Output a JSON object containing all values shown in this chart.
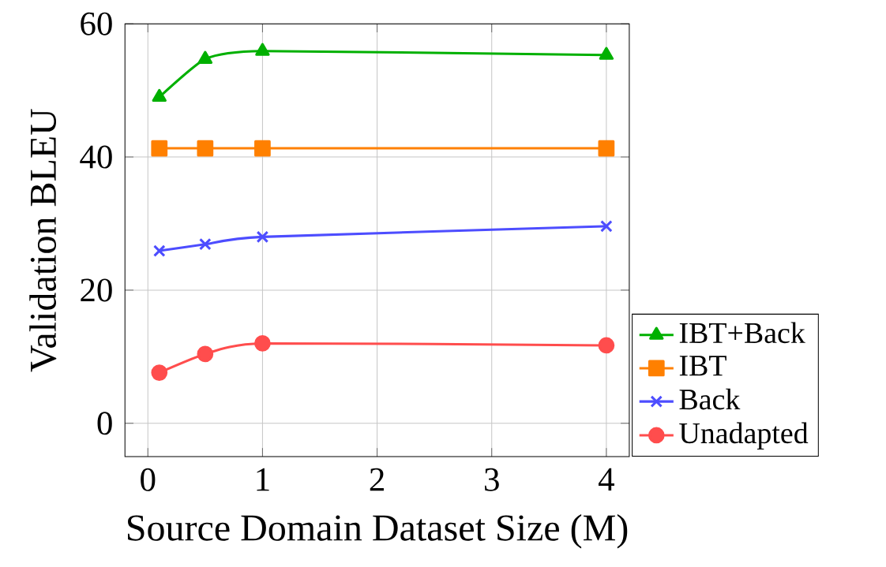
{
  "chart_data": {
    "type": "line",
    "xlabel": "Source Domain Dataset Size (M)",
    "ylabel": "Validation BLEU",
    "x": [
      0.1,
      0.5,
      1,
      4
    ],
    "series": [
      {
        "name": "IBT+Back",
        "color": "#00b000",
        "marker": "triangle",
        "values": [
          49.0,
          54.7,
          55.9,
          55.3
        ]
      },
      {
        "name": "IBT",
        "color": "#ff8000",
        "marker": "square",
        "values": [
          41.3,
          41.3,
          41.3,
          41.3
        ]
      },
      {
        "name": "Back",
        "color": "#4d4dff",
        "marker": "cross",
        "values": [
          25.9,
          26.9,
          28.0,
          29.6
        ]
      },
      {
        "name": "Unadapted",
        "color": "#ff4d4d",
        "marker": "circle",
        "values": [
          7.6,
          10.4,
          12.0,
          11.7
        ]
      }
    ],
    "xlim": [
      -0.2,
      4.2
    ],
    "ylim": [
      -5,
      60
    ],
    "xticks": [
      0,
      1,
      2,
      3,
      4
    ],
    "yticks": [
      0,
      20,
      40,
      60
    ],
    "grid": true,
    "legend": "right",
    "line_style": "solid"
  }
}
